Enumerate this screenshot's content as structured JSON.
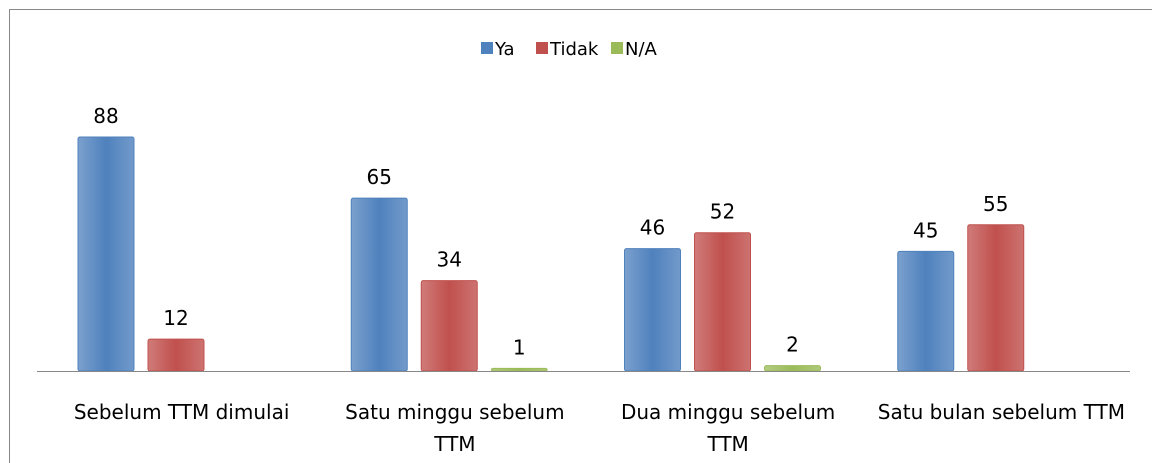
{
  "chart_data": {
    "type": "bar",
    "categories": [
      "Sebelum TTM dimulai",
      "Satu minggu sebelum TTM",
      "Dua minggu sebelum TTM",
      "Satu bulan sebelum TTM"
    ],
    "series": [
      {
        "name": "Ya",
        "color": "#4f81bd",
        "values": [
          88,
          65,
          46,
          45
        ]
      },
      {
        "name": "Tidak",
        "color": "#c0504d",
        "values": [
          12,
          34,
          52,
          55
        ]
      },
      {
        "name": "N/A",
        "color": "#9bbb59",
        "values": [
          null,
          1,
          2,
          null
        ]
      }
    ],
    "legend": "top"
  }
}
